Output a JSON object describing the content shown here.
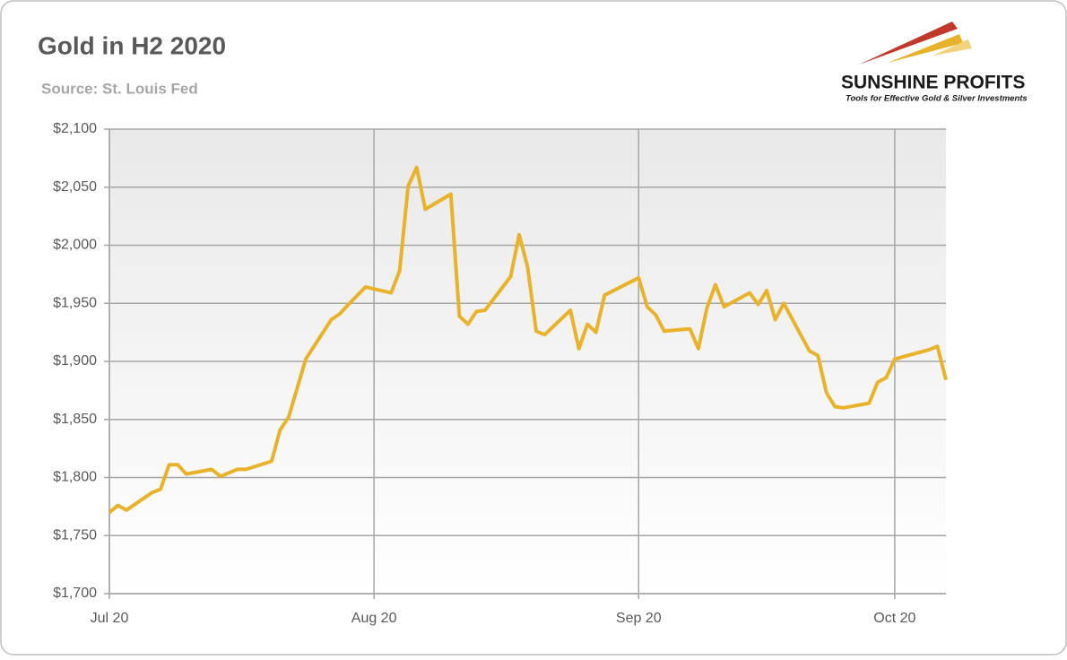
{
  "chart_data": {
    "type": "line",
    "title": "Gold in H2 2020",
    "subtitle": "Source: St. Louis Fed",
    "logo": {
      "name": "SUNSHINE PROFITS",
      "tagline": "Tools for Effective Gold & Silver Investments"
    },
    "x": [
      0,
      1,
      2,
      5,
      6,
      7,
      8,
      9,
      12,
      13,
      15,
      16,
      19,
      20,
      21,
      23,
      26,
      27,
      28,
      30,
      33,
      34,
      35,
      36,
      37,
      40,
      41,
      42,
      43,
      44,
      47,
      48,
      49,
      50,
      51,
      54,
      55,
      56,
      57,
      58,
      62,
      63,
      64,
      65,
      68,
      69,
      70,
      71,
      72,
      75,
      76,
      77,
      78,
      79,
      82,
      83,
      84,
      85,
      86,
      89,
      90,
      91,
      92,
      96,
      97,
      98
    ],
    "series": [
      {
        "name": "Gold",
        "color": "#e8b22a",
        "values": [
          1770,
          1776,
          1772,
          1787,
          1790,
          1811,
          1811,
          1803,
          1807,
          1801,
          1807,
          1807,
          1814,
          1841,
          1852,
          1902,
          1936,
          1941,
          1949,
          1964,
          1959,
          1978,
          2051,
          2067,
          2031,
          2044,
          1939,
          1932,
          1943,
          1944,
          1973,
          2009,
          1981,
          1926,
          1923,
          1944,
          1911,
          1932,
          1925,
          1957,
          1972,
          1947,
          1940,
          1926,
          1928,
          1911,
          1946,
          1966,
          1947,
          1959,
          1949,
          1961,
          1936,
          1950,
          1909,
          1905,
          1873,
          1861,
          1860,
          1864,
          1882,
          1886,
          1902,
          1910,
          1913,
          1884
        ]
      }
    ],
    "xlim": [
      0,
      98
    ],
    "xticks": [
      {
        "value": 0,
        "label": "Jul 20"
      },
      {
        "value": 31,
        "label": "Aug 20"
      },
      {
        "value": 62,
        "label": "Sep 20"
      },
      {
        "value": 92,
        "label": "Oct 20"
      }
    ],
    "ylim": [
      1700,
      2100
    ],
    "yticks": [
      {
        "value": 1700,
        "label": "$1,700"
      },
      {
        "value": 1750,
        "label": "$1,750"
      },
      {
        "value": 1800,
        "label": "$1,800"
      },
      {
        "value": 1850,
        "label": "$1,850"
      },
      {
        "value": 1900,
        "label": "$1,900"
      },
      {
        "value": 1950,
        "label": "$1,950"
      },
      {
        "value": 2000,
        "label": "$2,000"
      },
      {
        "value": 2050,
        "label": "$2,050"
      },
      {
        "value": 2100,
        "label": "$2,100"
      }
    ],
    "grid": true
  }
}
